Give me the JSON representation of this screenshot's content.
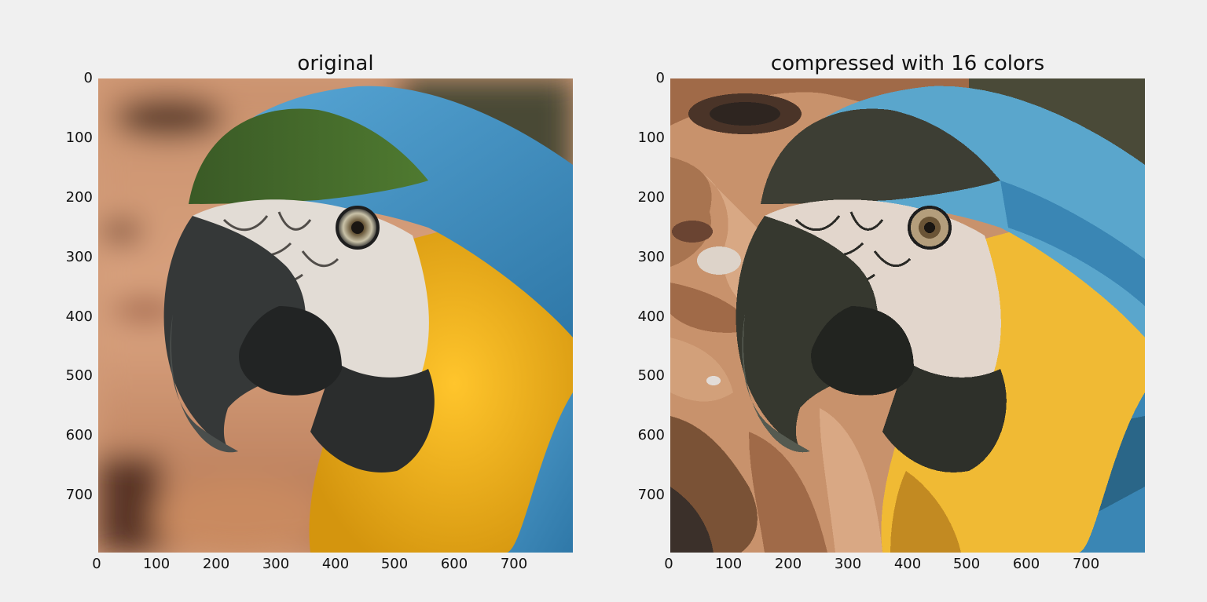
{
  "panels": [
    {
      "title": "original",
      "yticks": [
        "0",
        "100",
        "200",
        "300",
        "400",
        "500",
        "600",
        "700"
      ],
      "xticks": [
        "0",
        "100",
        "200",
        "300",
        "400",
        "500",
        "600",
        "700"
      ]
    },
    {
      "title": "compressed with 16 colors",
      "yticks": [
        "0",
        "100",
        "200",
        "300",
        "400",
        "500",
        "600",
        "700"
      ],
      "xticks": [
        "0",
        "100",
        "200",
        "300",
        "400",
        "500",
        "600",
        "700"
      ]
    }
  ],
  "colors": {
    "background": "#f0f0f0",
    "skin": "#d9a47f",
    "shadow": "#3b2a22",
    "blue_feathers": "#3e8fc2",
    "green_feathers": "#3d5a2a",
    "yellow_feathers": "#f0b21c",
    "face_white": "#e4ddd6",
    "beak": "#2f3232"
  }
}
